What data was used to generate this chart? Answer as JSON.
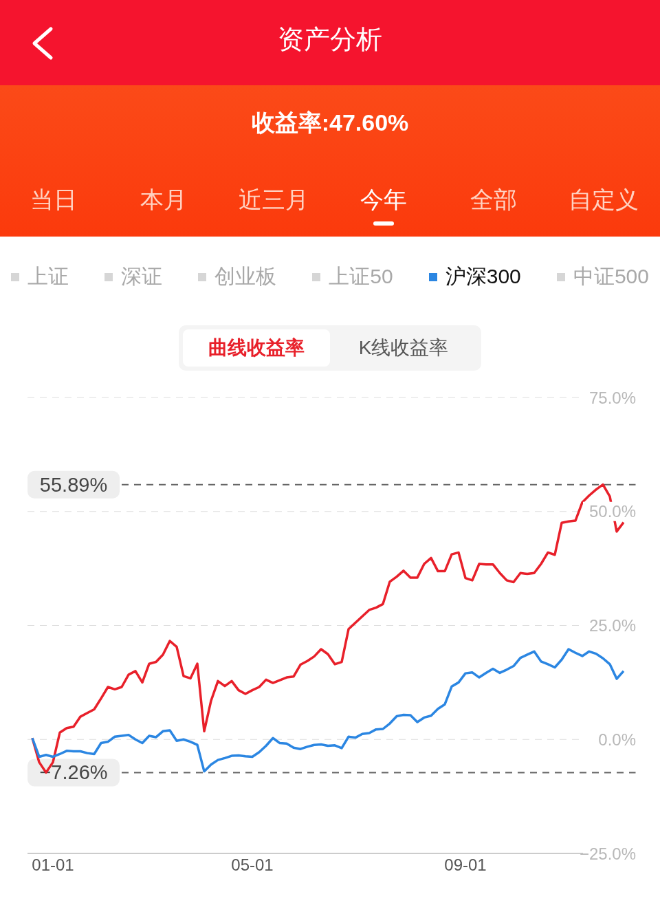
{
  "chart_data": {
    "type": "line",
    "title": "资产分析",
    "subtitle": "收益率:47.60%",
    "annotations": [
      "当日",
      "本月",
      "近三月",
      "今年",
      "全部",
      "自定义",
      "上证",
      "深证",
      "创业板",
      "上证50",
      "中证500",
      "曲线收益率",
      "K线收益率"
    ],
    "categories": [
      null,
      null,
      null,
      "01-01",
      null,
      null,
      null,
      null,
      null,
      null,
      null,
      null,
      null,
      null,
      null,
      null,
      null,
      null,
      null,
      null,
      null,
      null,
      null,
      null,
      null,
      null,
      null,
      null,
      null,
      null,
      null,
      null,
      "05-01",
      null,
      null,
      null,
      null,
      null,
      null,
      null,
      null,
      null,
      null,
      null,
      null,
      null,
      null,
      null,
      null,
      null,
      null,
      null,
      null,
      null,
      null,
      null,
      null,
      null,
      null,
      null,
      null,
      null,
      null,
      "09-01",
      null,
      null,
      null,
      null,
      null,
      null,
      null,
      null,
      null,
      null,
      null,
      null,
      null,
      null,
      null,
      null,
      null,
      null,
      null,
      null,
      null,
      null,
      null
    ],
    "series": [
      {
        "color": "#e8202a",
        "values": [
          0.3,
          -5,
          -7.26,
          -5,
          1.5,
          2.5,
          2.8,
          5,
          5.8,
          6.6,
          9,
          11.5,
          11,
          11.5,
          14.2,
          15,
          12.5,
          16.6,
          17,
          18.6,
          21.6,
          20.3,
          13.9,
          13.4,
          16.6,
          1.8,
          8.5,
          12.8,
          11.7,
          12.8,
          10.8,
          10,
          10.8,
          11.5,
          13.1,
          12.4,
          13,
          13.6,
          13.8,
          16.4,
          17.2,
          18.2,
          19.8,
          18.7,
          16.5,
          17,
          24.2,
          25.6,
          27,
          28.4,
          28.9,
          29.7,
          34.6,
          35.7,
          37,
          35.5,
          35.5,
          38.5,
          39.8,
          36.9,
          36.9,
          40.6,
          41,
          35.4,
          34.9,
          38.5,
          38.4,
          38.4,
          36.5,
          34.9,
          34.5,
          36.5,
          36.3,
          36.5,
          38.5,
          41,
          40.5,
          47.5,
          47.8,
          48,
          52,
          53.5,
          54.8,
          55.89,
          53.3,
          45.6,
          47.6
        ]
      },
      {
        "name": "沪深300",
        "color": "#2b86e2",
        "values": [
          0.3,
          -3.8,
          -3.4,
          -3.8,
          -3.2,
          -2.5,
          -2.6,
          -2.6,
          -3,
          -3.2,
          -0.8,
          -0.5,
          0.6,
          0.8,
          1,
          0,
          -0.8,
          0.8,
          0.5,
          1.8,
          2,
          -0.3,
          0,
          -0.5,
          -1.2,
          -7,
          -5.5,
          -4.5,
          -4.1,
          -3.6,
          -3.5,
          -3.7,
          -3.8,
          -2.8,
          -1.4,
          0.3,
          -0.8,
          -0.9,
          -1.8,
          -2.1,
          -1.6,
          -1.2,
          -1.1,
          -1.4,
          -1.3,
          -1.9,
          0.6,
          0.4,
          1.2,
          1.4,
          2.2,
          2.3,
          3.5,
          5.1,
          5.4,
          5.3,
          3.8,
          4.8,
          5.2,
          6.7,
          7.7,
          11.6,
          12.5,
          14.5,
          14.7,
          13.6,
          14.6,
          15.5,
          14.6,
          15.3,
          16.1,
          17.9,
          18.6,
          19.3,
          17.1,
          16.5,
          15.8,
          17.5,
          19.8,
          19,
          18.3,
          19.3,
          18.8,
          17.8,
          16.5,
          13.3,
          15
        ]
      }
    ],
    "ylim": [
      -25,
      75
    ],
    "yticks": [
      {
        "value": -25,
        "label": "−25.0%"
      },
      {
        "value": 0,
        "label": "0.0%"
      },
      {
        "value": 25,
        "label": "25.0%"
      },
      {
        "value": 50,
        "label": "50.0%"
      },
      {
        "value": 75,
        "label": "75.0%"
      }
    ],
    "ref_lines": [
      {
        "axis": "y",
        "value": 55.89,
        "label": "55.89%",
        "color": "#666666",
        "line_style": "dashed"
      },
      {
        "axis": "y",
        "value": -7.26,
        "label": "−7.26%",
        "color": "#666666",
        "line_style": "dashed"
      }
    ],
    "grid": "y",
    "legend": "top",
    "marker": "none",
    "line_style": "solid"
  }
}
